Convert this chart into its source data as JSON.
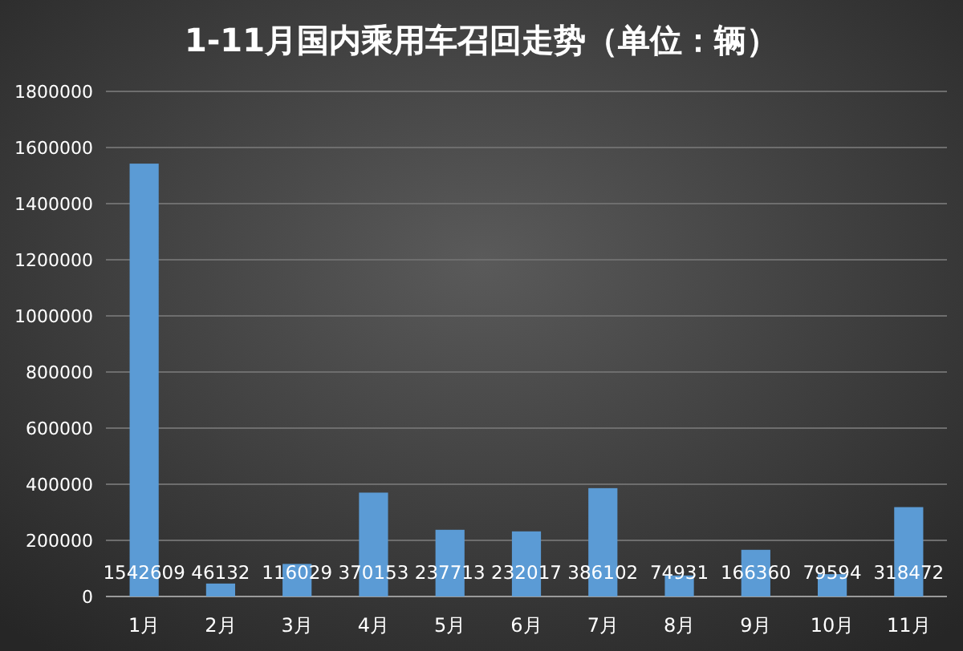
{
  "chart_data": {
    "type": "bar",
    "title": "1-11月国内乘用车召回走势（单位：辆）",
    "categories": [
      "1月",
      "2月",
      "3月",
      "4月",
      "5月",
      "6月",
      "7月",
      "8月",
      "9月",
      "10月",
      "11月"
    ],
    "values": [
      1542609,
      46132,
      116029,
      370153,
      237713,
      232017,
      386102,
      74931,
      166360,
      79594,
      318472
    ],
    "color": "#5b9bd5",
    "ylim": [
      0,
      1800000
    ],
    "yticks": [
      0,
      200000,
      400000,
      600000,
      800000,
      1000000,
      1200000,
      1400000,
      1600000,
      1800000
    ],
    "grid": "y",
    "data_labels": true
  }
}
